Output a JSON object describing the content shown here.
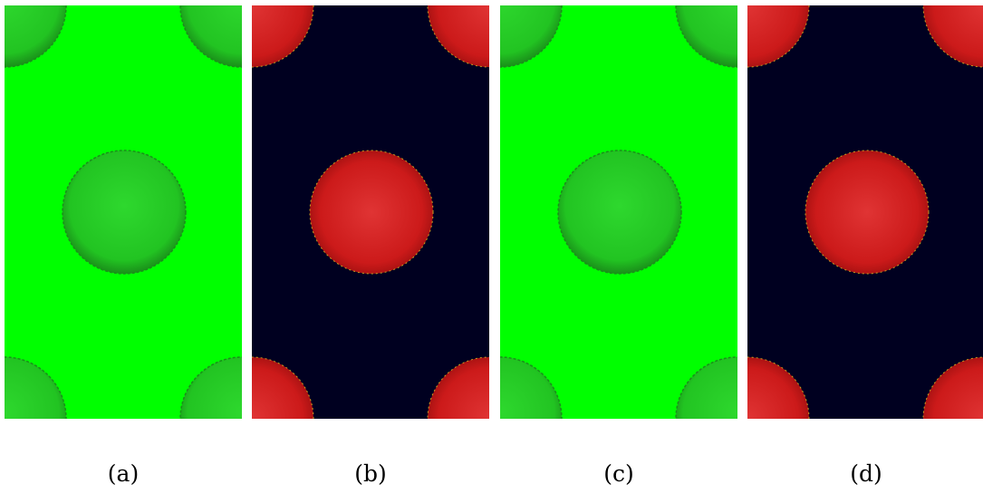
{
  "figure": {
    "panels": [
      {
        "label": "(a)",
        "background_color": "#00ff00",
        "sphere_color": "#22c422",
        "sphere_highlight": "#2ed82e",
        "sphere_edge": "#1a8f1a"
      },
      {
        "label": "(b)",
        "background_color": "#000020",
        "sphere_color": "#cc1a1a",
        "sphere_highlight": "#e03434",
        "sphere_edge": "#9a0f0f"
      },
      {
        "label": "(c)",
        "background_color": "#00ff00",
        "sphere_color": "#22c422",
        "sphere_highlight": "#2ed82e",
        "sphere_edge": "#1a8f1a"
      },
      {
        "label": "(d)",
        "background_color": "#000020",
        "sphere_color": "#cc1a1a",
        "sphere_highlight": "#e03434",
        "sphere_edge": "#9a0f0f"
      }
    ]
  }
}
